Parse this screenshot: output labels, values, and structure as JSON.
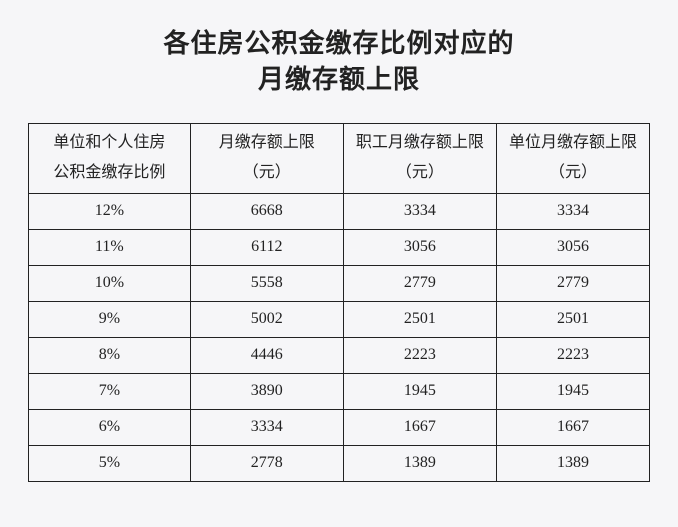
{
  "title": {
    "line1": "各住房公积金缴存比例对应的",
    "line2": "月缴存额上限"
  },
  "table": {
    "columns": [
      {
        "line1": "单位和个人住房",
        "line2": "公积金缴存比例"
      },
      {
        "line1": "月缴存额上限",
        "line2": "（元）"
      },
      {
        "line1": "职工月缴存额上限",
        "line2": "（元）"
      },
      {
        "line1": "单位月缴存额上限",
        "line2": "（元）"
      }
    ],
    "rows": [
      [
        "12%",
        "6668",
        "3334",
        "3334"
      ],
      [
        "11%",
        "6112",
        "3056",
        "3056"
      ],
      [
        "10%",
        "5558",
        "2779",
        "2779"
      ],
      [
        "9%",
        "5002",
        "2501",
        "2501"
      ],
      [
        "8%",
        "4446",
        "2223",
        "2223"
      ],
      [
        "7%",
        "3890",
        "1945",
        "1945"
      ],
      [
        "6%",
        "3334",
        "1667",
        "1667"
      ],
      [
        "5%",
        "2778",
        "1389",
        "1389"
      ]
    ]
  }
}
